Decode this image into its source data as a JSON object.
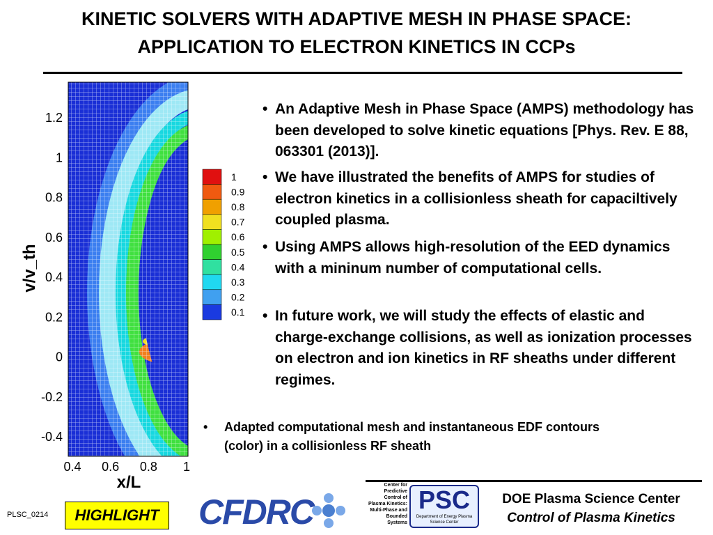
{
  "header": {
    "title_lines": [
      "KINETIC SOLVERS WITH ADAPTIVE MESH IN PHASE SPACE:",
      "APPLICATION TO ELECTRON KINETICS IN CCPs"
    ]
  },
  "plot": {
    "y_label": "v/v_th",
    "x_label": "x/L",
    "y_tick_labels": [
      "1.2",
      "1",
      "0.8",
      "0.6",
      "0.4",
      "0.2",
      "0",
      "-0.2",
      "-0.4"
    ],
    "x_tick_labels": [
      "0.4",
      "0.6",
      "0.8",
      "1"
    ],
    "colorbar_labels": [
      "1",
      "0.9",
      "0.8",
      "0.7",
      "0.6",
      "0.5",
      "0.4",
      "0.3",
      "0.2",
      "0.1"
    ]
  },
  "bullets": [
    "An Adaptive Mesh in Phase Space (AMPS) methodology has been developed to solve kinetic equations [Phys. Rev. E 88, 063301 (2013)].",
    "We have illustrated the benefits of AMPS for studies of electron kinetics in a collisionless sheath for capaciltively coupled plasma.",
    "Using AMPS allows high-resolution of the EED dynamics with a mininum number of computational cells.",
    "In future work, we will study the effects of elastic and charge-exchange collisions, as well as ionization processes on electron and ion kinetics in RF sheaths under different regimes."
  ],
  "caption": "Adapted computational mesh and instantaneous EDF contours (color) in a collisionless RF sheath",
  "footer": {
    "code": "PLSC_0214",
    "badge": "HIGHLIGHT",
    "logo_cfdrc": "CFDRC",
    "logo_center_text": "Center for Predictive Control of Plasma Kinetics: Multi-Phase and Bounded Systems",
    "logo_psc": "PSC",
    "logo_psc_sub": "Department of Energy Plasma Science Center",
    "org_line1": "DOE Plasma Science Center",
    "org_line2": "Control of Plasma Kinetics"
  }
}
